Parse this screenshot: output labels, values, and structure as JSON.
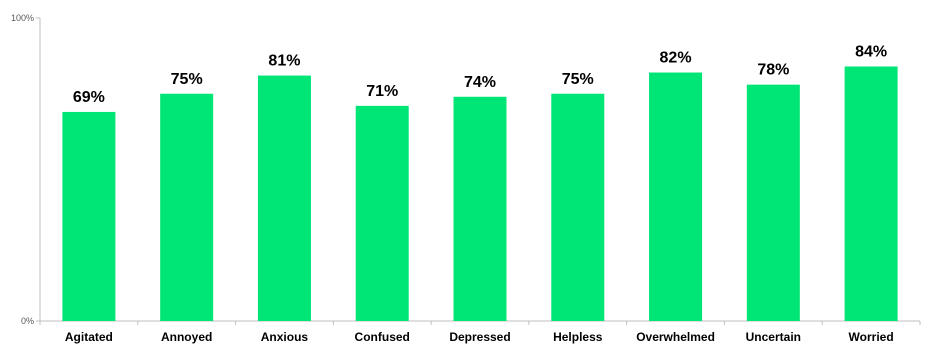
{
  "chart_data": {
    "type": "bar",
    "title": "",
    "xlabel": "",
    "ylabel": "",
    "categories": [
      "Agitated",
      "Annoyed",
      "Anxious",
      "Confused",
      "Depressed",
      "Helpless",
      "Overwhelmed",
      "Uncertain",
      "Worried"
    ],
    "values": [
      69,
      75,
      81,
      71,
      74,
      75,
      82,
      78,
      84
    ],
    "data_labels": [
      "69%",
      "75%",
      "81%",
      "71%",
      "74%",
      "75%",
      "82%",
      "78%",
      "84%"
    ],
    "ylim": [
      0,
      100
    ],
    "y_ticks": [
      {
        "value": 0,
        "label": "0%"
      },
      {
        "value": 100,
        "label": "100%"
      }
    ],
    "grid": false,
    "legend": "none",
    "bar_color": "#00e676"
  }
}
